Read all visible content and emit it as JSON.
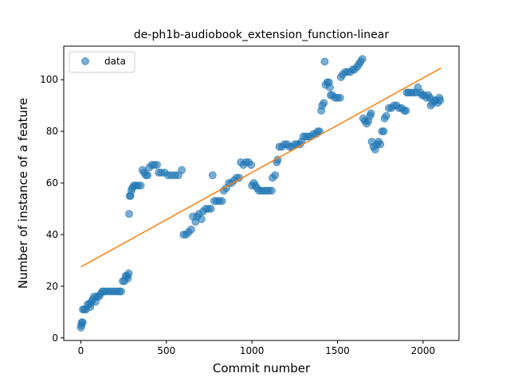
{
  "chart_data": {
    "type": "scatter",
    "title": "de-ph1b-audiobook_extension_function-linear",
    "xlabel": "Commit number",
    "ylabel": "Number of instance of a feature",
    "xlim": [
      -100,
      2210
    ],
    "ylim": [
      -1,
      113
    ],
    "xticks": [
      0,
      500,
      1000,
      1500,
      2000
    ],
    "yticks": [
      0,
      20,
      40,
      60,
      80,
      100
    ],
    "grid": false,
    "legend": {
      "position": "top-left",
      "entries": [
        "data"
      ]
    },
    "colors": {
      "data": "#1f77b4",
      "fit": "#ff7f0e"
    },
    "series": [
      {
        "name": "data",
        "kind": "scatter",
        "points": [
          [
            0,
            4
          ],
          [
            3,
            5
          ],
          [
            6,
            6
          ],
          [
            10,
            6
          ],
          [
            12,
            11
          ],
          [
            20,
            11
          ],
          [
            30,
            11
          ],
          [
            40,
            13
          ],
          [
            50,
            13
          ],
          [
            55,
            12
          ],
          [
            62,
            14
          ],
          [
            70,
            15
          ],
          [
            78,
            16
          ],
          [
            85,
            14
          ],
          [
            95,
            16
          ],
          [
            105,
            16
          ],
          [
            115,
            17
          ],
          [
            125,
            18
          ],
          [
            135,
            18
          ],
          [
            150,
            18
          ],
          [
            165,
            18
          ],
          [
            180,
            18
          ],
          [
            195,
            18
          ],
          [
            210,
            18
          ],
          [
            225,
            18
          ],
          [
            235,
            18
          ],
          [
            245,
            22
          ],
          [
            255,
            22
          ],
          [
            262,
            24
          ],
          [
            270,
            24
          ],
          [
            275,
            23
          ],
          [
            280,
            25
          ],
          [
            282,
            48
          ],
          [
            285,
            55
          ],
          [
            290,
            55
          ],
          [
            295,
            57
          ],
          [
            300,
            58
          ],
          [
            310,
            59
          ],
          [
            320,
            59
          ],
          [
            335,
            59
          ],
          [
            350,
            59
          ],
          [
            360,
            65
          ],
          [
            370,
            64
          ],
          [
            380,
            63
          ],
          [
            390,
            63
          ],
          [
            400,
            66
          ],
          [
            415,
            67
          ],
          [
            430,
            67
          ],
          [
            445,
            67
          ],
          [
            455,
            64
          ],
          [
            470,
            64
          ],
          [
            490,
            64
          ],
          [
            510,
            63
          ],
          [
            530,
            63
          ],
          [
            550,
            63
          ],
          [
            570,
            63
          ],
          [
            590,
            65
          ],
          [
            600,
            40
          ],
          [
            615,
            40
          ],
          [
            630,
            41
          ],
          [
            645,
            42
          ],
          [
            655,
            47
          ],
          [
            670,
            45
          ],
          [
            680,
            47
          ],
          [
            690,
            48
          ],
          [
            705,
            46
          ],
          [
            715,
            49
          ],
          [
            730,
            50
          ],
          [
            745,
            50
          ],
          [
            760,
            50
          ],
          [
            770,
            63
          ],
          [
            780,
            53
          ],
          [
            795,
            53
          ],
          [
            810,
            53
          ],
          [
            825,
            53
          ],
          [
            835,
            57
          ],
          [
            850,
            58
          ],
          [
            865,
            60
          ],
          [
            880,
            60
          ],
          [
            895,
            61
          ],
          [
            910,
            62
          ],
          [
            925,
            62
          ],
          [
            935,
            68
          ],
          [
            950,
            67
          ],
          [
            965,
            68
          ],
          [
            980,
            68
          ],
          [
            995,
            67
          ],
          [
            1000,
            59
          ],
          [
            1010,
            60
          ],
          [
            1020,
            59
          ],
          [
            1030,
            58
          ],
          [
            1040,
            57
          ],
          [
            1055,
            57
          ],
          [
            1070,
            57
          ],
          [
            1085,
            57
          ],
          [
            1100,
            57
          ],
          [
            1115,
            57
          ],
          [
            1120,
            62
          ],
          [
            1135,
            63
          ],
          [
            1145,
            68
          ],
          [
            1150,
            69
          ],
          [
            1160,
            74
          ],
          [
            1175,
            74
          ],
          [
            1190,
            75
          ],
          [
            1205,
            75
          ],
          [
            1220,
            74
          ],
          [
            1235,
            74
          ],
          [
            1250,
            75
          ],
          [
            1265,
            75
          ],
          [
            1280,
            75
          ],
          [
            1290,
            76
          ],
          [
            1300,
            78
          ],
          [
            1315,
            78
          ],
          [
            1330,
            78
          ],
          [
            1345,
            78
          ],
          [
            1360,
            79
          ],
          [
            1375,
            79
          ],
          [
            1385,
            80
          ],
          [
            1395,
            80
          ],
          [
            1405,
            88
          ],
          [
            1410,
            90
          ],
          [
            1420,
            91
          ],
          [
            1425,
            107
          ],
          [
            1430,
            98
          ],
          [
            1440,
            99
          ],
          [
            1450,
            99
          ],
          [
            1455,
            97
          ],
          [
            1460,
            94
          ],
          [
            1470,
            94
          ],
          [
            1485,
            93
          ],
          [
            1500,
            93
          ],
          [
            1515,
            93
          ],
          [
            1520,
            101
          ],
          [
            1530,
            102
          ],
          [
            1545,
            103
          ],
          [
            1560,
            103
          ],
          [
            1575,
            103
          ],
          [
            1590,
            104
          ],
          [
            1600,
            104
          ],
          [
            1615,
            105
          ],
          [
            1625,
            106
          ],
          [
            1635,
            107
          ],
          [
            1645,
            108
          ],
          [
            1650,
            85
          ],
          [
            1660,
            84
          ],
          [
            1670,
            83
          ],
          [
            1680,
            84
          ],
          [
            1690,
            86
          ],
          [
            1695,
            87
          ],
          [
            1700,
            76
          ],
          [
            1710,
            74
          ],
          [
            1720,
            73
          ],
          [
            1730,
            75
          ],
          [
            1740,
            76
          ],
          [
            1750,
            75
          ],
          [
            1760,
            80
          ],
          [
            1770,
            80
          ],
          [
            1775,
            85
          ],
          [
            1785,
            86
          ],
          [
            1800,
            89
          ],
          [
            1815,
            89
          ],
          [
            1830,
            90
          ],
          [
            1845,
            90
          ],
          [
            1860,
            89
          ],
          [
            1875,
            89
          ],
          [
            1890,
            88
          ],
          [
            1900,
            88
          ],
          [
            1905,
            95
          ],
          [
            1915,
            95
          ],
          [
            1930,
            95
          ],
          [
            1945,
            95
          ],
          [
            1960,
            95
          ],
          [
            1970,
            97
          ],
          [
            1985,
            95
          ],
          [
            1995,
            94
          ],
          [
            2005,
            94
          ],
          [
            2020,
            93
          ],
          [
            2030,
            94
          ],
          [
            2040,
            93
          ],
          [
            2045,
            90
          ],
          [
            2055,
            91
          ],
          [
            2065,
            92
          ],
          [
            2075,
            92
          ],
          [
            2085,
            91
          ],
          [
            2095,
            93
          ],
          [
            2100,
            92
          ]
        ]
      },
      {
        "name": "fit",
        "kind": "line",
        "points": [
          [
            0,
            27.5
          ],
          [
            2105,
            104.5
          ]
        ]
      }
    ]
  }
}
